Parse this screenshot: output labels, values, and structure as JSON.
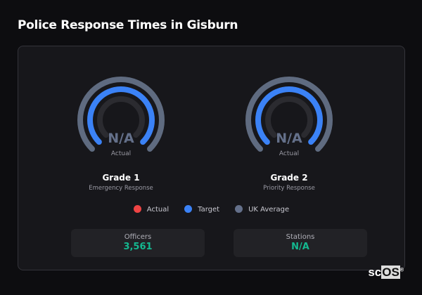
{
  "title": "Police Response Times in Gisburn",
  "gauges": [
    {
      "value": "N/A",
      "value_label": "Actual",
      "name": "Grade 1",
      "subtitle": "Emergency Response"
    },
    {
      "value": "N/A",
      "value_label": "Actual",
      "name": "Grade 2",
      "subtitle": "Priority Response"
    }
  ],
  "legend": [
    {
      "label": "Actual",
      "color": "#ef4444"
    },
    {
      "label": "Target",
      "color": "#3b82f6"
    },
    {
      "label": "UK Average",
      "color": "#64708a"
    }
  ],
  "stats": [
    {
      "label": "Officers",
      "value": "3,561"
    },
    {
      "label": "Stations",
      "value": "N/A"
    }
  ],
  "logo": "scOS",
  "colors": {
    "uk_average": "#5f6b80",
    "target": "#3b82f6",
    "actual_track": "#2b2b30",
    "accent": "#14b890"
  }
}
